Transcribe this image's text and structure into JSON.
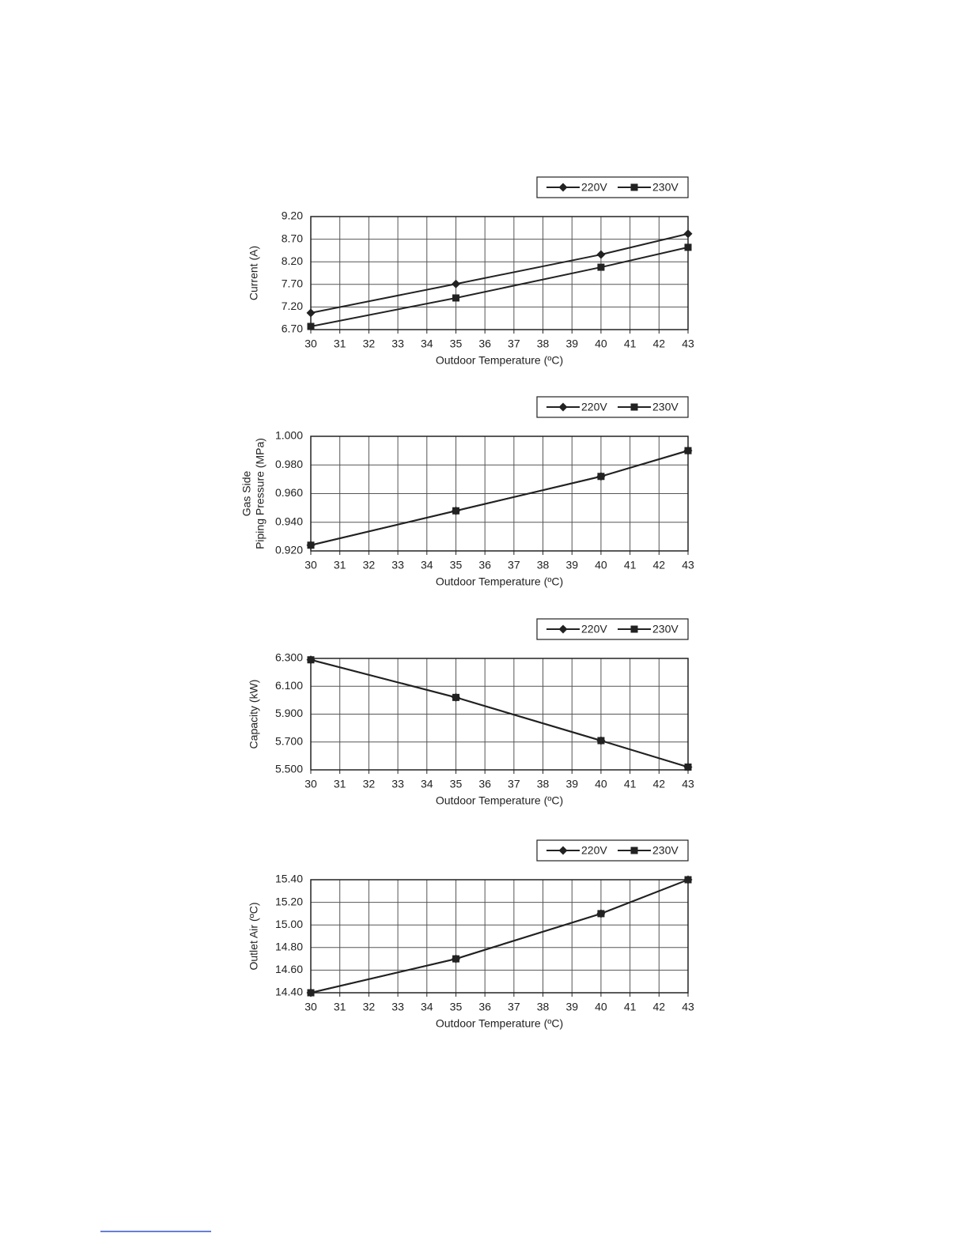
{
  "chart_data": [
    {
      "type": "line",
      "ylabel": "Current (A)",
      "xlabel": "Outdoor Temperature (ºC)",
      "xlim": [
        30,
        43
      ],
      "xticks": [
        30,
        31,
        32,
        33,
        34,
        35,
        36,
        37,
        38,
        39,
        40,
        41,
        42,
        43
      ],
      "ylim": [
        6.7,
        9.2
      ],
      "yticks": [
        {
          "value": 6.7,
          "label": "6.70"
        },
        {
          "value": 7.2,
          "label": "7.20"
        },
        {
          "value": 7.7,
          "label": "7.70"
        },
        {
          "value": 8.2,
          "label": "8.20"
        },
        {
          "value": 8.7,
          "label": "8.70"
        },
        {
          "value": 9.2,
          "label": "9.20"
        }
      ],
      "grid": true,
      "legend": "top-right",
      "x": [
        30,
        35,
        40,
        43
      ],
      "series": [
        {
          "name": "220V",
          "color": "#222222",
          "marker": "diamond",
          "values": [
            7.07,
            7.71,
            8.36,
            8.82
          ]
        },
        {
          "name": "230V",
          "color": "#222222",
          "marker": "square",
          "values": [
            6.77,
            7.4,
            8.08,
            8.52
          ]
        }
      ]
    },
    {
      "type": "line",
      "ylabel": [
        "Gas Side",
        "Piping Pressure (MPa)"
      ],
      "xlabel": "Outdoor Temperature (ºC)",
      "xlim": [
        30,
        43
      ],
      "xticks": [
        30,
        31,
        32,
        33,
        34,
        35,
        36,
        37,
        38,
        39,
        40,
        41,
        42,
        43
      ],
      "ylim": [
        0.92,
        1.0
      ],
      "yticks": [
        {
          "value": 0.92,
          "label": "0.920"
        },
        {
          "value": 0.94,
          "label": "0.940"
        },
        {
          "value": 0.96,
          "label": "0.960"
        },
        {
          "value": 0.98,
          "label": "0.980"
        },
        {
          "value": 1.0,
          "label": "1.000"
        }
      ],
      "grid": true,
      "legend": "top-right",
      "x": [
        30,
        35,
        40,
        43
      ],
      "series": [
        {
          "name": "220V",
          "color": "#222222",
          "marker": "diamond",
          "values": [
            0.924,
            0.948,
            0.972,
            0.99
          ]
        },
        {
          "name": "230V",
          "color": "#222222",
          "marker": "square",
          "values": [
            0.924,
            0.948,
            0.972,
            0.99
          ]
        }
      ]
    },
    {
      "type": "line",
      "ylabel": "Capacity (kW)",
      "xlabel": "Outdoor Temperature (ºC)",
      "xlim": [
        30,
        43
      ],
      "xticks": [
        30,
        31,
        32,
        33,
        34,
        35,
        36,
        37,
        38,
        39,
        40,
        41,
        42,
        43
      ],
      "ylim": [
        5.5,
        6.3
      ],
      "yticks": [
        {
          "value": 5.5,
          "label": "5.500"
        },
        {
          "value": 5.7,
          "label": "5.700"
        },
        {
          "value": 5.9,
          "label": "5.900"
        },
        {
          "value": 6.1,
          "label": "6.100"
        },
        {
          "value": 6.3,
          "label": "6.300"
        }
      ],
      "grid": true,
      "legend": "top-right",
      "x": [
        30,
        35,
        40,
        43
      ],
      "series": [
        {
          "name": "220V",
          "color": "#222222",
          "marker": "diamond",
          "values": [
            6.29,
            6.02,
            5.71,
            5.52
          ]
        },
        {
          "name": "230V",
          "color": "#222222",
          "marker": "square",
          "values": [
            6.29,
            6.02,
            5.71,
            5.52
          ]
        }
      ]
    },
    {
      "type": "line",
      "ylabel": "Outlet Air (ºC)",
      "xlabel": "Outdoor Temperature (ºC)",
      "xlim": [
        30,
        43
      ],
      "xticks": [
        30,
        31,
        32,
        33,
        34,
        35,
        36,
        37,
        38,
        39,
        40,
        41,
        42,
        43
      ],
      "ylim": [
        14.4,
        15.4
      ],
      "yticks": [
        {
          "value": 14.4,
          "label": "14.40"
        },
        {
          "value": 14.6,
          "label": "14.60"
        },
        {
          "value": 14.8,
          "label": "14.80"
        },
        {
          "value": 15.0,
          "label": "15.00"
        },
        {
          "value": 15.2,
          "label": "15.20"
        },
        {
          "value": 15.4,
          "label": "15.40"
        }
      ],
      "grid": true,
      "legend": "top-right",
      "x": [
        30,
        35,
        40,
        43
      ],
      "series": [
        {
          "name": "220V",
          "color": "#222222",
          "marker": "diamond",
          "values": [
            14.4,
            14.7,
            15.1,
            15.4
          ]
        },
        {
          "name": "230V",
          "color": "#222222",
          "marker": "square",
          "values": [
            14.4,
            14.7,
            15.1,
            15.4
          ]
        }
      ]
    }
  ]
}
